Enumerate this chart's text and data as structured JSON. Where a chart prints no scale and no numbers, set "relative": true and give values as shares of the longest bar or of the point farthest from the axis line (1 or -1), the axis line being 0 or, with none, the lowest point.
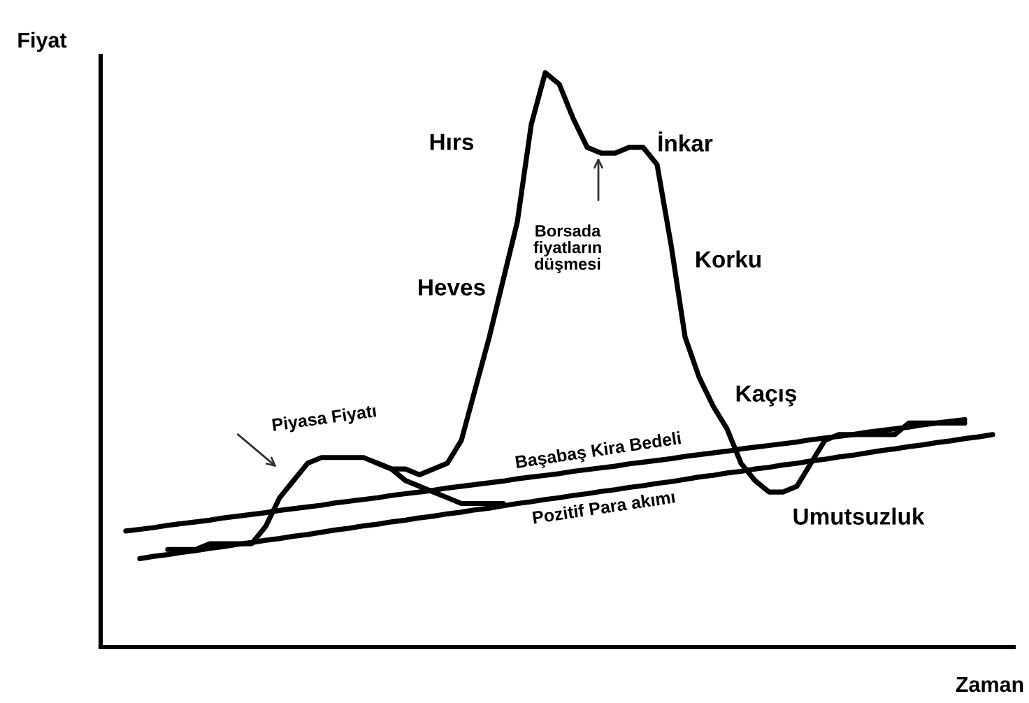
{
  "chart_data": {
    "type": "line",
    "relative": true,
    "xlabel": "Zaman",
    "ylabel": "Fiyat",
    "categories": [
      null,
      null,
      null,
      null,
      null,
      null,
      null,
      null,
      null,
      null,
      null,
      null,
      null,
      null,
      null,
      null,
      null,
      null,
      null,
      null,
      null,
      null,
      null,
      null,
      null,
      null,
      null,
      null,
      null,
      null,
      null,
      null,
      null,
      null,
      null,
      null,
      null,
      null,
      null,
      null,
      null,
      null,
      null,
      null,
      null,
      null,
      null,
      null,
      null,
      null,
      null,
      null,
      null,
      null,
      null,
      null,
      null,
      null,
      null,
      null,
      null,
      null,
      null
    ],
    "series": [
      {
        "color": "#000000",
        "values": [
          null,
          null,
          null,
          0.17,
          0.17,
          0.17,
          0.18,
          0.18,
          0.18,
          0.18,
          0.21,
          0.26,
          0.29,
          0.32,
          0.33,
          0.33,
          0.33,
          0.33,
          0.32,
          0.31,
          0.31,
          0.3,
          0.31,
          0.32,
          0.36,
          0.45,
          0.54,
          0.64,
          0.74,
          0.91,
          1,
          0.98,
          0.92,
          0.87,
          0.86,
          0.86,
          0.87,
          0.87,
          0.84,
          0.7,
          0.54,
          0.47,
          0.42,
          0.38,
          0.32,
          0.29,
          0.27,
          0.27,
          0.28,
          0.32,
          0.36,
          0.37,
          0.37,
          0.37,
          0.37,
          0.37,
          0.39,
          0.39,
          0.39,
          0.39,
          0.39,
          null,
          null
        ]
      },
      {
        "color": "#000000",
        "values": [
          null,
          null,
          null,
          null,
          null,
          null,
          null,
          null,
          null,
          null,
          null,
          null,
          null,
          null,
          null,
          null,
          null,
          null,
          0.32,
          0.31,
          0.29,
          0.28,
          0.27,
          0.26,
          0.25,
          0.25,
          0.25,
          0.25,
          null,
          null,
          null,
          null,
          null,
          null,
          null,
          null,
          null,
          null,
          null,
          null,
          null,
          null,
          null,
          null,
          null,
          null,
          null,
          null,
          null,
          null,
          null,
          null,
          null,
          null,
          null,
          null,
          null,
          null,
          null,
          null,
          null,
          null,
          null
        ]
      },
      {
        "name": "Başabaş Kira Bedeli",
        "color": "#000000",
        "values": [
          0.202,
          0.205,
          0.208,
          0.212,
          0.215,
          0.218,
          0.221,
          0.225,
          0.228,
          0.231,
          0.234,
          0.238,
          0.241,
          0.244,
          0.247,
          0.251,
          0.254,
          0.257,
          0.26,
          0.264,
          0.267,
          0.27,
          0.273,
          0.277,
          0.28,
          0.283,
          0.286,
          0.289,
          0.293,
          0.296,
          0.299,
          0.302,
          0.306,
          0.309,
          0.312,
          0.315,
          0.319,
          0.322,
          0.325,
          0.328,
          0.332,
          0.335,
          0.338,
          0.341,
          0.345,
          0.348,
          0.351,
          0.354,
          0.357,
          0.361,
          0.364,
          0.367,
          0.37,
          0.374,
          0.377,
          0.38,
          0.383,
          0.387,
          0.39,
          0.393,
          0.396,
          null,
          null
        ]
      },
      {
        "name": "Pozitif Para akımı",
        "color": "#000000",
        "values": [
          null,
          0.154,
          0.158,
          0.161,
          0.165,
          0.168,
          0.172,
          0.175,
          0.179,
          0.182,
          0.186,
          0.189,
          0.193,
          0.196,
          0.2,
          0.204,
          0.207,
          0.211,
          0.214,
          0.218,
          0.221,
          0.225,
          0.228,
          0.232,
          0.235,
          0.239,
          0.242,
          0.246,
          0.25,
          0.253,
          0.257,
          0.26,
          0.264,
          0.267,
          0.271,
          0.274,
          0.278,
          0.281,
          0.285,
          0.288,
          0.292,
          0.296,
          0.299,
          0.303,
          0.306,
          0.31,
          0.313,
          0.317,
          0.32,
          0.324,
          0.327,
          0.331,
          0.334,
          0.338,
          0.342,
          0.345,
          0.349,
          0.352,
          0.356,
          0.359,
          0.363,
          0.366,
          0.37
        ]
      }
    ],
    "annotations": [
      "Hırs",
      "İnkar",
      "Borsada\nfiyatların\ndüşmesi",
      "Heves",
      "Korku",
      "Kaçış",
      "Umutsuzluk",
      "Piyasa Fiyatı"
    ]
  }
}
